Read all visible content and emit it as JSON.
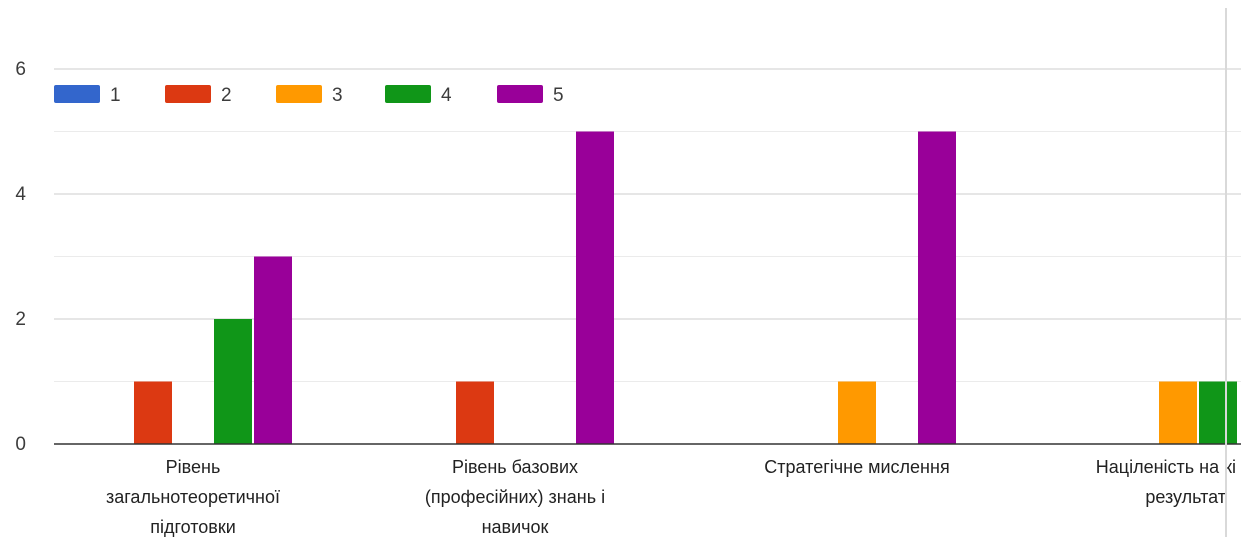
{
  "chart_data": {
    "type": "bar",
    "categories": [
      [
        "Рівень",
        "загальнотеоретичної",
        "підготовки"
      ],
      [
        "Рівень базових",
        "(професійних) знань і",
        "навичок"
      ],
      [
        "Стратегічне мислення"
      ],
      [
        "Націленість на кі",
        "результат"
      ]
    ],
    "series": [
      {
        "name": "1",
        "color": "#3366cc",
        "values": [
          0,
          0,
          0,
          0
        ]
      },
      {
        "name": "2",
        "color": "#dc3912",
        "values": [
          1,
          1,
          0,
          0
        ]
      },
      {
        "name": "3",
        "color": "#ff9900",
        "values": [
          0,
          0,
          1,
          1
        ]
      },
      {
        "name": "4",
        "color": "#109618",
        "values": [
          2,
          0,
          0,
          1
        ]
      },
      {
        "name": "5",
        "color": "#990099",
        "values": [
          3,
          5,
          5,
          0
        ]
      }
    ],
    "yticks": [
      "0",
      "2",
      "4",
      "6"
    ],
    "ylim": [
      0,
      6
    ],
    "grid": true,
    "legend": "top-left",
    "title": "",
    "xlabel": "",
    "ylabel": ""
  }
}
